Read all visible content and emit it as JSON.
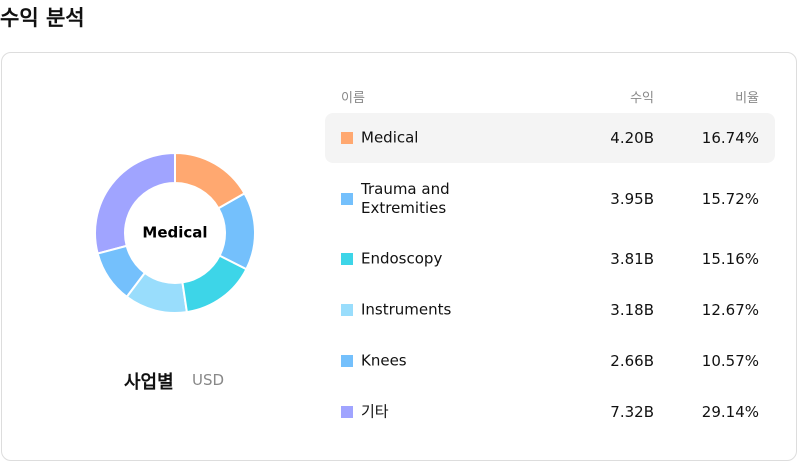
{
  "header": {
    "title": "수익 분석"
  },
  "chart_data": {
    "type": "donut",
    "center_label": "Medical",
    "caption": "사업별",
    "unit": "USD",
    "columns": [
      "이름",
      "수익",
      "비율"
    ],
    "categories": [
      "Medical",
      "Trauma and Extremities",
      "Endoscopy",
      "Instruments",
      "Knees",
      "기타"
    ],
    "values": [
      16.74,
      15.72,
      15.16,
      12.67,
      10.57,
      29.14
    ],
    "value_labels": [
      "16.74%",
      "15.72%",
      "15.16%",
      "12.67%",
      "10.57%",
      "29.14%"
    ],
    "revenue_labels": [
      "4.20B",
      "3.95B",
      "3.81B",
      "3.18B",
      "2.66B",
      "7.32B"
    ],
    "colors": [
      "#ffa870",
      "#74c0fc",
      "#3dd5e8",
      "#99ddfc",
      "#74c0fc",
      "#a0a4ff"
    ],
    "highlighted": 0
  }
}
